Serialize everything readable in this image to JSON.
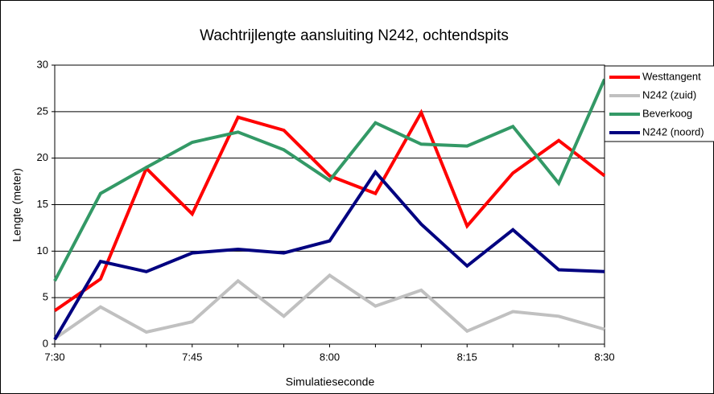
{
  "chart_data": {
    "type": "line",
    "title": "Wachtrijlengte aansluiting N242, ochtendspits",
    "x_label": "Simulatieseconde",
    "y_label": "Lengte (meter)",
    "categories": [
      "7:30",
      null,
      null,
      "7:45",
      null,
      null,
      "8:00",
      null,
      null,
      "8:15",
      null,
      null,
      "8:30"
    ],
    "series": [
      {
        "name": "Westtangent",
        "color": "#ff0000",
        "values": [
          3.6,
          7,
          18.9,
          14,
          24.4,
          23,
          18.1,
          16.2,
          24.9,
          12.7,
          18.4,
          21.9,
          18.1
        ]
      },
      {
        "name": "N242 (zuid)",
        "color": "#c0c0c0",
        "values": [
          0.6,
          4,
          1.3,
          2.4,
          6.8,
          3,
          7.4,
          4.1,
          5.8,
          1.4,
          3.5,
          3,
          1.6
        ]
      },
      {
        "name": "Beverkoog",
        "color": "#339966",
        "values": [
          6.8,
          16.2,
          19,
          21.7,
          22.8,
          20.9,
          17.6,
          23.8,
          21.5,
          21.3,
          23.4,
          17.3,
          28.5
        ]
      },
      {
        "name": "N242 (noord)",
        "color": "#000080",
        "values": [
          0.5,
          8.9,
          7.8,
          9.8,
          10.2,
          9.8,
          11.1,
          18.5,
          12.9,
          8.4,
          12.3,
          8,
          7.8
        ]
      }
    ],
    "ylim": [
      0,
      30
    ],
    "yticks": [
      0,
      5,
      10,
      15,
      20,
      25,
      30
    ],
    "grid": true,
    "legend": "right"
  }
}
